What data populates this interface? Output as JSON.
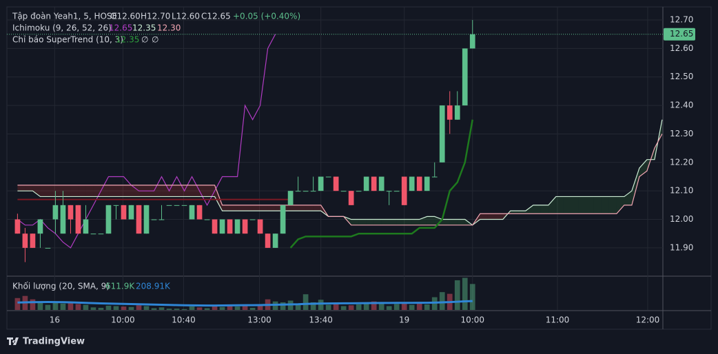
{
  "chart_data": {
    "type": "candlestick",
    "symbol": "Tập đoàn Yeah1, 5, HOSE",
    "ohlc_labels": [
      "O12.60",
      "H12.70",
      "L12.60",
      "C12.65"
    ],
    "change_label": "+0.05 (+0.40%)",
    "ichimoku_name": "Ichimoku (9, 26, 52, 26)",
    "ichimoku_values": [
      "12.65",
      "12.35",
      "12.30"
    ],
    "supertrend_name": "Chỉ báo SuperTrend (10, 3)",
    "supertrend_values": [
      "12.35",
      "∅",
      "∅"
    ],
    "volume_name": "Khối lượng (20, SMA, 9)",
    "volume_values": [
      "611.9K",
      "208.91K"
    ],
    "brand": "TradingView",
    "up_color": "#5dbf8c",
    "down_color": "#f0566a",
    "grid": true,
    "ylim": [
      11.803,
      12.746
    ],
    "yticks": [
      {
        "value": 11.9,
        "label": "11.90"
      },
      {
        "value": 12.0,
        "label": "12.00"
      },
      {
        "value": 12.1,
        "label": "12.10"
      },
      {
        "value": 12.2,
        "label": "12.20"
      },
      {
        "value": 12.3,
        "label": "12.30"
      },
      {
        "value": 12.4,
        "label": "12.40"
      },
      {
        "value": 12.5,
        "label": "12.50"
      },
      {
        "value": 12.6,
        "label": "12.60"
      },
      {
        "value": 12.7,
        "label": "12.70"
      }
    ],
    "last_price": {
      "value": 12.65,
      "label": "12.65"
    },
    "xlim": [
      -1.4,
      85.1
    ],
    "xticks": [
      {
        "value": 4.9,
        "label": "16"
      },
      {
        "value": 13.9,
        "label": "10:00"
      },
      {
        "value": 21.9,
        "label": "10:40"
      },
      {
        "value": 31.9,
        "label": "13:00"
      },
      {
        "value": 40,
        "label": "13:40"
      },
      {
        "value": 51,
        "label": "19"
      },
      {
        "value": 60,
        "label": "10:00"
      },
      {
        "value": 71.2,
        "label": "11:00"
      },
      {
        "value": 83.1,
        "label": "12:00"
      }
    ],
    "x": [
      0,
      1,
      2,
      3,
      4,
      5,
      6,
      7,
      8,
      9,
      10,
      11,
      12,
      13,
      14,
      15,
      16,
      17,
      18,
      19,
      20,
      21,
      22,
      23,
      24,
      25,
      26,
      27,
      28,
      29,
      30,
      31,
      32,
      33,
      34,
      35,
      36,
      37,
      38,
      39,
      40,
      41,
      42,
      43,
      44,
      45,
      46,
      47,
      48,
      49,
      50,
      51,
      52,
      53,
      54,
      55,
      56,
      57,
      58,
      59,
      60,
      61,
      62,
      63,
      64,
      65,
      66,
      67,
      68,
      69,
      70,
      71,
      72,
      73,
      74,
      75,
      76,
      77,
      78,
      79,
      80,
      81,
      82,
      83,
      84,
      85
    ],
    "open": [
      12.0,
      11.95,
      11.95,
      11.95,
      11.9,
      12.0,
      11.95,
      12.05,
      12.05,
      11.95,
      11.95,
      11.95,
      11.95,
      12.05,
      12.05,
      12.0,
      12.05,
      11.95,
      12.0,
      12.0,
      12.05,
      12.05,
      12.05,
      12.0,
      12.05,
      12.0,
      12.0,
      11.95,
      12.0,
      11.95,
      12.0,
      12.0,
      12.0,
      11.95,
      11.9,
      11.95,
      12.05,
      12.1,
      12.1,
      12.1,
      12.1,
      12.15,
      12.15,
      12.1,
      12.1,
      12.1,
      12.1,
      12.15,
      12.1,
      12.1,
      12.1,
      12.15,
      12.1,
      12.15,
      12.1,
      12.15,
      12.2,
      12.4,
      12.35,
      12.4,
      12.6,
      null,
      null,
      null,
      null,
      null,
      null,
      null,
      null,
      null,
      null,
      null,
      null,
      null,
      null,
      null,
      null,
      null,
      null,
      null,
      null,
      null,
      null,
      null,
      null,
      null
    ],
    "high": [
      12.02,
      11.97,
      11.95,
      12.0,
      11.9,
      12.1,
      12.1,
      12.05,
      12.05,
      12.05,
      11.95,
      11.95,
      12.05,
      12.05,
      12.05,
      12.05,
      12.05,
      12.05,
      12.0,
      12.05,
      12.05,
      12.05,
      12.05,
      12.05,
      12.05,
      12.0,
      12.0,
      12.0,
      12.0,
      12.0,
      12.0,
      12.0,
      12.0,
      11.95,
      11.95,
      12.05,
      12.1,
      12.15,
      12.1,
      12.15,
      12.15,
      12.15,
      12.15,
      12.1,
      12.1,
      12.1,
      12.15,
      12.15,
      12.15,
      12.1,
      12.1,
      12.15,
      12.15,
      12.15,
      12.15,
      12.2,
      12.4,
      12.45,
      12.45,
      12.6,
      12.7,
      null,
      null,
      null,
      null,
      null,
      null,
      null,
      null,
      null,
      null,
      null,
      null,
      null,
      null,
      null,
      null,
      null,
      null,
      null,
      null,
      null,
      null,
      null,
      null,
      null
    ],
    "low": [
      11.95,
      11.85,
      11.9,
      11.9,
      11.9,
      11.95,
      11.95,
      11.95,
      11.95,
      11.95,
      11.95,
      11.95,
      11.95,
      12.0,
      12.0,
      12.0,
      11.95,
      11.95,
      12.0,
      12.0,
      12.05,
      12.05,
      12.05,
      12.0,
      12.0,
      12.0,
      11.95,
      11.95,
      11.95,
      11.95,
      11.95,
      12.0,
      11.95,
      11.9,
      11.9,
      11.95,
      12.05,
      12.1,
      12.1,
      12.1,
      12.1,
      12.15,
      12.1,
      12.1,
      12.05,
      12.1,
      12.1,
      12.1,
      12.1,
      12.05,
      12.1,
      12.05,
      12.1,
      12.1,
      12.1,
      12.15,
      12.2,
      12.3,
      12.35,
      12.4,
      12.6,
      null,
      null,
      null,
      null,
      null,
      null,
      null,
      null,
      null,
      null,
      null,
      null,
      null,
      null,
      null,
      null,
      null,
      null,
      null,
      null,
      null,
      null,
      null,
      null,
      null
    ],
    "close": [
      11.95,
      11.9,
      11.9,
      12.0,
      11.9,
      12.05,
      12.05,
      12.0,
      11.95,
      12.0,
      11.95,
      11.95,
      12.05,
      12.05,
      12.0,
      12.05,
      11.95,
      12.05,
      12.0,
      12.0,
      12.05,
      12.05,
      12.05,
      12.05,
      12.0,
      12.0,
      11.95,
      12.0,
      11.95,
      12.0,
      11.95,
      12.0,
      11.95,
      11.9,
      11.95,
      12.05,
      12.1,
      12.1,
      12.1,
      12.1,
      12.15,
      12.15,
      12.1,
      12.1,
      12.05,
      12.1,
      12.15,
      12.1,
      12.15,
      12.1,
      12.1,
      12.05,
      12.15,
      12.1,
      12.15,
      12.15,
      12.4,
      12.35,
      12.4,
      12.6,
      12.65,
      null,
      null,
      null,
      null,
      null,
      null,
      null,
      null,
      null,
      null,
      null,
      null,
      null,
      null,
      null,
      null,
      null,
      null,
      null,
      null,
      null,
      null,
      null,
      null,
      null
    ],
    "volume": [
      280000,
      330000,
      250000,
      180000,
      120000,
      200000,
      150000,
      170000,
      140000,
      120000,
      60000,
      50000,
      100000,
      90000,
      80000,
      70000,
      110000,
      90000,
      40000,
      60000,
      30000,
      30000,
      20000,
      80000,
      60000,
      40000,
      90000,
      70000,
      110000,
      80000,
      120000,
      50000,
      100000,
      250000,
      200000,
      180000,
      220000,
      150000,
      370000,
      180000,
      240000,
      120000,
      140000,
      90000,
      110000,
      130000,
      160000,
      200000,
      180000,
      90000,
      140000,
      150000,
      120000,
      160000,
      130000,
      300000,
      420000,
      380000,
      700000,
      757000,
      611900,
      null,
      null,
      null,
      null,
      null,
      null,
      null,
      null,
      null,
      null,
      null,
      null,
      null,
      null,
      null,
      null,
      null,
      null,
      null,
      null,
      null,
      null,
      null,
      null,
      null
    ],
    "volume_ylim": [
      0,
      780000
    ],
    "series": [
      {
        "name": "Lagging",
        "color": "#b23cc4",
        "values": [
          12.0,
          11.98,
          11.98,
          12.0,
          11.97,
          11.95,
          11.92,
          11.9,
          11.95,
          12.0,
          12.05,
          12.1,
          12.15,
          12.15,
          12.15,
          12.12,
          12.1,
          12.1,
          12.1,
          12.15,
          12.1,
          12.15,
          12.1,
          12.15,
          12.1,
          12.05,
          12.1,
          12.15,
          12.15,
          12.15,
          12.4,
          12.35,
          12.4,
          12.6,
          12.65,
          null,
          null,
          null,
          null,
          null,
          null,
          null,
          null,
          null,
          null,
          null,
          null,
          null,
          null,
          null,
          null,
          null,
          null,
          null,
          null,
          null,
          null,
          null,
          null,
          null,
          null,
          null,
          null,
          null,
          null,
          null,
          null,
          null,
          null,
          null,
          null,
          null,
          null,
          null,
          null,
          null,
          null,
          null,
          null,
          null,
          null,
          null,
          null,
          null,
          null,
          null
        ]
      },
      {
        "name": "Span A",
        "color": "#cdeed6",
        "values": [
          12.1,
          12.1,
          12.1,
          12.08,
          12.08,
          12.08,
          12.08,
          12.08,
          12.08,
          12.08,
          12.08,
          12.08,
          12.08,
          12.08,
          12.08,
          12.08,
          12.08,
          12.08,
          12.08,
          12.08,
          12.08,
          12.08,
          12.08,
          12.08,
          12.08,
          12.08,
          12.08,
          12.03,
          12.03,
          12.03,
          12.03,
          12.03,
          12.03,
          12.03,
          12.03,
          12.03,
          12.03,
          12.03,
          12.03,
          12.03,
          12.03,
          12.01,
          12.01,
          12.01,
          12.0,
          12.0,
          12.0,
          12.0,
          12.0,
          12.0,
          12.0,
          12.0,
          12.0,
          12.0,
          12.01,
          12.01,
          12.0,
          12.0,
          12.0,
          12.0,
          11.98,
          12.0,
          12.0,
          12.0,
          12.0,
          12.03,
          12.03,
          12.03,
          12.05,
          12.05,
          12.05,
          12.08,
          12.08,
          12.08,
          12.08,
          12.08,
          12.08,
          12.08,
          12.08,
          12.08,
          12.08,
          12.1,
          12.18,
          12.21,
          12.21,
          12.35
        ]
      },
      {
        "name": "Span B",
        "color": "#f4a7b4",
        "values": [
          12.12,
          12.12,
          12.12,
          12.12,
          12.12,
          12.12,
          12.12,
          12.12,
          12.12,
          12.12,
          12.12,
          12.12,
          12.12,
          12.12,
          12.12,
          12.12,
          12.12,
          12.12,
          12.12,
          12.12,
          12.12,
          12.12,
          12.12,
          12.12,
          12.12,
          12.12,
          12.12,
          12.05,
          12.05,
          12.05,
          12.05,
          12.05,
          12.05,
          12.05,
          12.05,
          12.05,
          12.05,
          12.05,
          12.05,
          12.05,
          12.05,
          12.01,
          12.01,
          12.01,
          11.98,
          11.98,
          11.98,
          11.98,
          11.98,
          11.98,
          11.98,
          11.98,
          11.98,
          11.98,
          11.98,
          11.98,
          11.98,
          11.98,
          11.98,
          11.98,
          11.98,
          12.02,
          12.02,
          12.02,
          12.02,
          12.02,
          12.02,
          12.02,
          12.02,
          12.02,
          12.02,
          12.02,
          12.02,
          12.02,
          12.02,
          12.02,
          12.02,
          12.02,
          12.02,
          12.02,
          12.05,
          12.05,
          12.15,
          12.17,
          12.25,
          12.3
        ]
      },
      {
        "name": "Base",
        "color": "#7d1a24",
        "values": [
          12.07,
          12.07,
          12.07,
          12.07,
          12.07,
          12.07,
          12.07,
          12.07,
          12.07,
          12.07,
          12.07,
          12.07,
          12.07,
          12.07,
          12.07,
          12.07,
          12.07,
          12.07,
          12.07,
          12.07,
          12.07,
          12.07,
          12.07,
          12.07,
          12.07,
          12.07,
          12.07,
          12.07,
          12.07,
          12.07,
          12.07,
          12.07,
          12.07,
          12.07,
          12.07,
          12.07,
          12.07,
          null,
          null,
          null,
          null,
          null,
          null,
          null,
          null,
          null,
          null,
          null,
          null,
          null,
          null,
          null,
          null,
          null,
          null,
          null,
          null,
          null,
          null,
          null,
          null,
          null,
          null,
          null,
          null,
          null,
          null,
          null,
          null,
          null,
          null,
          null,
          null,
          null,
          null,
          null,
          null,
          null,
          null,
          null,
          null,
          null,
          null,
          null,
          null,
          null
        ]
      },
      {
        "name": "SuperTrend",
        "color": "#1e7a1e",
        "values": [
          null,
          null,
          null,
          null,
          null,
          null,
          null,
          null,
          null,
          null,
          null,
          null,
          null,
          null,
          null,
          null,
          null,
          null,
          null,
          null,
          null,
          null,
          null,
          null,
          null,
          null,
          null,
          null,
          null,
          null,
          null,
          null,
          null,
          null,
          null,
          null,
          11.9,
          11.93,
          11.94,
          11.94,
          11.94,
          11.94,
          11.94,
          11.94,
          11.94,
          11.95,
          11.95,
          11.95,
          11.95,
          11.95,
          11.95,
          11.95,
          11.95,
          11.97,
          11.97,
          11.97,
          12.0,
          12.1,
          12.13,
          12.2,
          12.35,
          null,
          null,
          null,
          null,
          null,
          null,
          null,
          null,
          null,
          null,
          null,
          null,
          null,
          null,
          null,
          null,
          null,
          null,
          null,
          null,
          null,
          null,
          null,
          null,
          null
        ]
      },
      {
        "name": "Volume SMA",
        "color": "#2f86d6",
        "axis": "volume",
        "values": [
          175000,
          178000,
          182000,
          185000,
          186000,
          184000,
          182000,
          178000,
          172000,
          166000,
          160000,
          154000,
          150000,
          146000,
          142000,
          138000,
          134000,
          130000,
          126000,
          122000,
          118000,
          114000,
          110000,
          108000,
          106000,
          104000,
          104000,
          106000,
          108000,
          110000,
          112000,
          112000,
          114000,
          118000,
          122000,
          126000,
          130000,
          134000,
          142000,
          146000,
          150000,
          152000,
          154000,
          156000,
          156000,
          158000,
          160000,
          162000,
          164000,
          164000,
          166000,
          166000,
          166000,
          168000,
          168000,
          172000,
          178000,
          184000,
          194000,
          203000,
          208910,
          null,
          null,
          null,
          null,
          null,
          null,
          null,
          null,
          null,
          null,
          null,
          null,
          null,
          null,
          null,
          null,
          null,
          null,
          null,
          null,
          null,
          null,
          null,
          null,
          null
        ]
      }
    ]
  }
}
